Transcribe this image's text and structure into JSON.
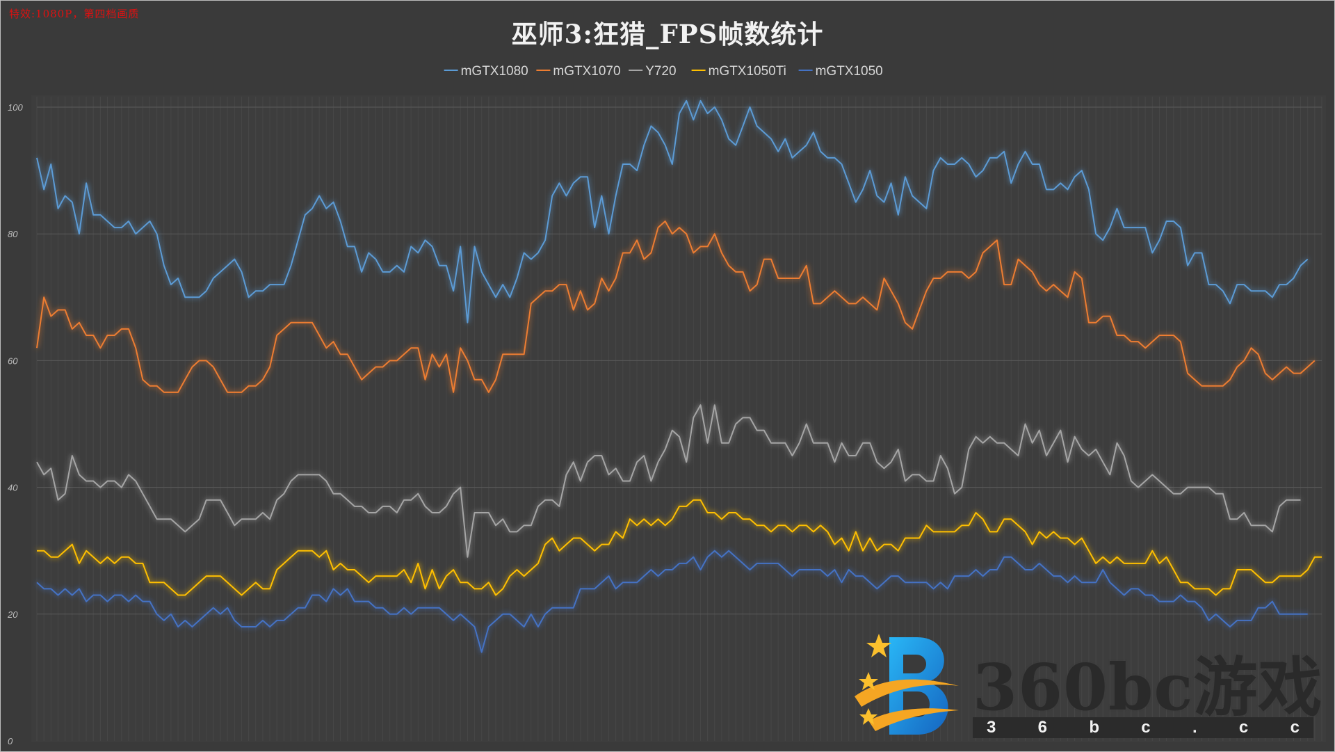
{
  "corner_note": "特效:1080P，第四档画质",
  "chart_data": {
    "type": "line",
    "title": "巫师3:狂猎_FPS帧数统计",
    "xlabel": "",
    "ylabel": "",
    "ylim": [
      0,
      100
    ],
    "yticks": [
      0,
      20,
      40,
      60,
      80,
      100
    ],
    "grid": true,
    "legend": "top",
    "series": [
      {
        "name": "mGTX1080",
        "color": "#5b9bd5",
        "values": [
          92,
          87,
          91,
          84,
          86,
          85,
          80,
          88,
          83,
          83,
          82,
          81,
          81,
          82,
          80,
          81,
          82,
          80,
          75,
          72,
          73,
          70,
          70,
          70,
          71,
          73,
          74,
          75,
          76,
          74,
          70,
          71,
          71,
          72,
          72,
          72,
          75,
          79,
          83,
          84,
          86,
          84,
          85,
          82,
          78,
          78,
          74,
          77,
          76,
          74,
          74,
          75,
          74,
          78,
          77,
          79,
          78,
          75,
          75,
          71,
          78,
          66,
          78,
          74,
          72,
          70,
          72,
          70,
          73,
          77,
          76,
          77,
          79,
          86,
          88,
          86,
          88,
          89,
          89,
          81,
          86,
          80,
          86,
          91,
          91,
          90,
          94,
          97,
          96,
          94,
          91,
          99,
          101,
          98,
          101,
          99,
          100,
          98,
          95,
          94,
          97,
          100,
          97,
          96,
          95,
          93,
          95,
          92,
          93,
          94,
          96,
          93,
          92,
          92,
          91,
          88,
          85,
          87,
          90,
          86,
          85,
          88,
          83,
          89,
          86,
          85,
          84,
          90,
          92,
          91,
          91,
          92,
          91,
          89,
          90,
          92,
          92,
          93,
          88,
          91,
          93,
          91,
          91,
          87,
          87,
          88,
          87,
          89,
          90,
          87,
          80,
          79,
          81,
          84,
          81,
          81,
          81,
          81,
          77,
          79,
          82,
          82,
          81,
          75,
          77,
          77,
          72,
          72,
          71,
          69,
          72,
          72,
          71,
          71,
          71,
          70,
          72,
          72,
          73,
          75,
          76
        ]
      },
      {
        "name": "mGTX1070",
        "color": "#ed7d31",
        "values": [
          62,
          70,
          67,
          68,
          68,
          65,
          66,
          64,
          64,
          62,
          64,
          64,
          65,
          65,
          62,
          57,
          56,
          56,
          55,
          55,
          55,
          57,
          59,
          60,
          60,
          59,
          57,
          55,
          55,
          55,
          56,
          56,
          57,
          59,
          64,
          65,
          66,
          66,
          66,
          66,
          64,
          62,
          63,
          61,
          61,
          59,
          57,
          58,
          59,
          59,
          60,
          60,
          61,
          62,
          62,
          57,
          61,
          59,
          61,
          55,
          62,
          60,
          57,
          57,
          55,
          57,
          61,
          61,
          61,
          61,
          69,
          70,
          71,
          71,
          72,
          72,
          68,
          71,
          68,
          69,
          73,
          71,
          73,
          77,
          77,
          79,
          76,
          77,
          81,
          82,
          80,
          81,
          80,
          77,
          78,
          78,
          80,
          77,
          75,
          74,
          74,
          71,
          72,
          76,
          76,
          73,
          73,
          73,
          73,
          75,
          69,
          69,
          70,
          71,
          70,
          69,
          69,
          70,
          69,
          68,
          73,
          71,
          69,
          66,
          65,
          68,
          71,
          73,
          73,
          74,
          74,
          74,
          73,
          74,
          77,
          78,
          79,
          72,
          72,
          76,
          75,
          74,
          72,
          71,
          72,
          71,
          70,
          74,
          73,
          66,
          66,
          67,
          67,
          64,
          64,
          63,
          63,
          62,
          63,
          64,
          64,
          64,
          63,
          58,
          57,
          56,
          56,
          56,
          56,
          57,
          59,
          60,
          62,
          61,
          58,
          57,
          58,
          59,
          58,
          58,
          59,
          60
        ]
      },
      {
        "name": "Y720",
        "color": "#a5a5a5",
        "values": [
          44,
          42,
          43,
          38,
          39,
          45,
          42,
          41,
          41,
          40,
          41,
          41,
          40,
          42,
          41,
          39,
          37,
          35,
          35,
          35,
          34,
          33,
          34,
          35,
          38,
          38,
          38,
          36,
          34,
          35,
          35,
          35,
          36,
          35,
          38,
          39,
          41,
          42,
          42,
          42,
          42,
          41,
          39,
          39,
          38,
          37,
          37,
          36,
          36,
          37,
          37,
          36,
          38,
          38,
          39,
          37,
          36,
          36,
          37,
          39,
          40,
          29,
          36,
          36,
          36,
          34,
          35,
          33,
          33,
          34,
          34,
          37,
          38,
          38,
          37,
          42,
          44,
          41,
          44,
          45,
          45,
          42,
          43,
          41,
          41,
          44,
          45,
          41,
          44,
          46,
          49,
          48,
          44,
          51,
          53,
          47,
          53,
          47,
          47,
          50,
          51,
          51,
          49,
          49,
          47,
          47,
          47,
          45,
          47,
          50,
          47,
          47,
          47,
          44,
          47,
          45,
          45,
          47,
          47,
          44,
          43,
          44,
          46,
          41,
          42,
          42,
          41,
          41,
          45,
          43,
          39,
          40,
          46,
          48,
          47,
          48,
          47,
          47,
          46,
          45,
          50,
          47,
          49,
          45,
          47,
          49,
          44,
          48,
          46,
          45,
          46,
          44,
          42,
          47,
          45,
          41,
          40,
          41,
          42,
          41,
          40,
          39,
          39,
          40,
          40,
          40,
          40,
          39,
          39,
          35,
          35,
          36,
          34,
          34,
          34,
          33,
          37,
          38,
          38,
          38
        ]
      },
      {
        "name": "mGTX1050Ti",
        "color": "#ffc000",
        "values": [
          30,
          30,
          29,
          29,
          30,
          31,
          28,
          30,
          29,
          28,
          29,
          28,
          29,
          29,
          28,
          28,
          25,
          25,
          25,
          24,
          23,
          23,
          24,
          25,
          26,
          26,
          26,
          25,
          24,
          23,
          24,
          25,
          24,
          24,
          27,
          28,
          29,
          30,
          30,
          30,
          29,
          30,
          27,
          28,
          27,
          27,
          26,
          25,
          26,
          26,
          26,
          26,
          27,
          25,
          28,
          24,
          27,
          24,
          26,
          27,
          25,
          25,
          24,
          24,
          25,
          23,
          24,
          26,
          27,
          26,
          27,
          28,
          31,
          32,
          30,
          31,
          32,
          32,
          31,
          30,
          31,
          31,
          33,
          32,
          35,
          34,
          35,
          34,
          35,
          34,
          35,
          37,
          37,
          38,
          38,
          36,
          36,
          35,
          36,
          36,
          35,
          35,
          34,
          34,
          33,
          34,
          34,
          33,
          34,
          34,
          33,
          34,
          33,
          31,
          32,
          30,
          33,
          30,
          32,
          30,
          31,
          31,
          30,
          32,
          32,
          32,
          34,
          33,
          33,
          33,
          33,
          34,
          34,
          36,
          35,
          33,
          33,
          35,
          35,
          34,
          33,
          31,
          33,
          32,
          33,
          32,
          32,
          31,
          32,
          30,
          28,
          29,
          28,
          29,
          28,
          28,
          28,
          28,
          30,
          28,
          29,
          27,
          25,
          25,
          24,
          24,
          24,
          23,
          24,
          24,
          27,
          27,
          27,
          26,
          25,
          25,
          26,
          26,
          26,
          26,
          27,
          29,
          29
        ]
      },
      {
        "name": "mGTX1050",
        "color": "#4472c4",
        "values": [
          25,
          24,
          24,
          23,
          24,
          23,
          24,
          22,
          23,
          23,
          22,
          23,
          23,
          22,
          23,
          22,
          22,
          20,
          19,
          20,
          18,
          19,
          18,
          19,
          20,
          21,
          20,
          21,
          19,
          18,
          18,
          18,
          19,
          18,
          19,
          19,
          20,
          21,
          21,
          23,
          23,
          22,
          24,
          23,
          24,
          22,
          22,
          22,
          21,
          21,
          20,
          20,
          21,
          20,
          21,
          21,
          21,
          21,
          20,
          19,
          20,
          19,
          18,
          14,
          18,
          19,
          20,
          20,
          19,
          18,
          20,
          18,
          20,
          21,
          21,
          21,
          21,
          24,
          24,
          24,
          25,
          26,
          24,
          25,
          25,
          25,
          26,
          27,
          26,
          27,
          27,
          28,
          28,
          29,
          27,
          29,
          30,
          29,
          30,
          29,
          28,
          27,
          28,
          28,
          28,
          28,
          27,
          26,
          27,
          27,
          27,
          27,
          26,
          27,
          25,
          27,
          26,
          26,
          25,
          24,
          25,
          26,
          26,
          25,
          25,
          25,
          25,
          24,
          25,
          24,
          26,
          26,
          26,
          27,
          26,
          27,
          27,
          29,
          29,
          28,
          27,
          27,
          28,
          27,
          26,
          26,
          25,
          26,
          25,
          25,
          25,
          27,
          25,
          24,
          23,
          24,
          24,
          23,
          23,
          22,
          22,
          22,
          23,
          22,
          22,
          21,
          19,
          20,
          19,
          18,
          19,
          19,
          19,
          21,
          21,
          22,
          20,
          20,
          20,
          20,
          20
        ]
      }
    ]
  },
  "watermark": {
    "brand_text": "360bc游戏",
    "url_chars": [
      "3",
      "6",
      "b",
      "c",
      ".",
      "c",
      "c"
    ]
  }
}
